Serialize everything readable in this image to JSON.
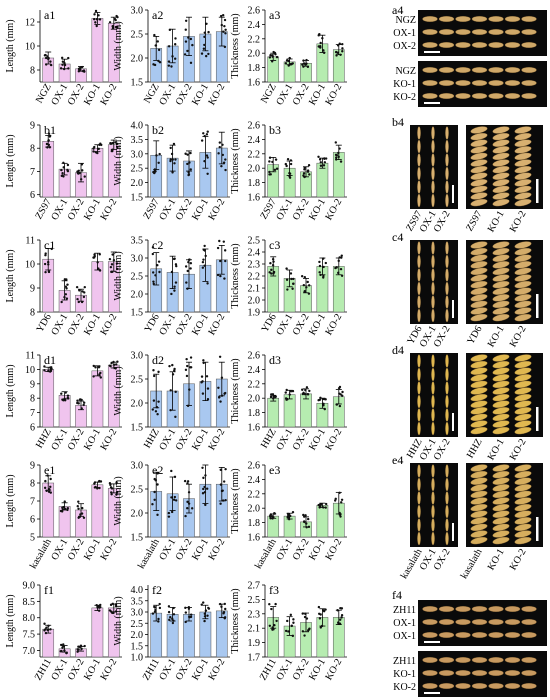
{
  "chart_data": [
    {
      "panel": "a1",
      "type": "bar",
      "ylabel": "Length (mm)",
      "categories": [
        "NGZ",
        "OX-1",
        "OX-2",
        "KO-1",
        "KO-2"
      ],
      "values": [
        9.0,
        8.5,
        8.1,
        12.3,
        11.9
      ],
      "errors": [
        0.5,
        0.4,
        0.2,
        0.5,
        0.5
      ],
      "color": "#f0c4ee",
      "ylim": [
        7,
        13
      ],
      "yticks": [
        8,
        10,
        12
      ]
    },
    {
      "panel": "a2",
      "type": "bar",
      "ylabel": "Width (mm)",
      "categories": [
        "NGZ",
        "OX-1",
        "OX-2",
        "KO-1",
        "KO-2"
      ],
      "values": [
        2.2,
        2.25,
        2.45,
        2.5,
        2.55
      ],
      "errors": [
        0.25,
        0.35,
        0.4,
        0.35,
        0.3
      ],
      "color": "#a9c8f0",
      "ylim": [
        1.5,
        3.0
      ],
      "yticks": [
        1.5,
        2.0,
        2.5,
        3.0
      ]
    },
    {
      "panel": "a3",
      "type": "bar",
      "ylabel": "Thickness (mm)",
      "categories": [
        "NGZ",
        "OX-1",
        "OX-2",
        "KO-1",
        "KO-2"
      ],
      "values": [
        1.95,
        1.88,
        1.86,
        2.13,
        2.05
      ],
      "errors": [
        0.05,
        0.04,
        0.04,
        0.12,
        0.07
      ],
      "color": "#b6ecb0",
      "ylim": [
        1.6,
        2.6
      ],
      "yticks": [
        1.6,
        1.8,
        2.0,
        2.2,
        2.4,
        2.6
      ]
    },
    {
      "panel": "b1",
      "type": "bar",
      "ylabel": "Length (mm)",
      "categories": [
        "ZS97",
        "OX-1",
        "OX-2",
        "KO-1",
        "KO-2"
      ],
      "values": [
        8.3,
        7.1,
        6.95,
        8.0,
        8.15
      ],
      "errors": [
        0.25,
        0.25,
        0.4,
        0.15,
        0.2
      ],
      "color": "#f0c4ee",
      "ylim": [
        5.9,
        9.0
      ],
      "yticks": [
        6,
        7,
        8,
        9
      ]
    },
    {
      "panel": "b2",
      "type": "bar",
      "ylabel": "Width (mm)",
      "categories": [
        "ZS97",
        "OX-1",
        "OX-2",
        "KO-1",
        "KO-2"
      ],
      "values": [
        2.95,
        2.85,
        2.75,
        3.05,
        3.2
      ],
      "errors": [
        0.5,
        0.45,
        0.35,
        0.55,
        0.55
      ],
      "color": "#a9c8f0",
      "ylim": [
        1.5,
        4.0
      ],
      "yticks": [
        1.5,
        2.0,
        2.5,
        3.0,
        3.5,
        4.0
      ]
    },
    {
      "panel": "b3",
      "type": "bar",
      "ylabel": "Thickness (mm)",
      "categories": [
        "ZS97",
        "OX-1",
        "OX-2",
        "KO-1",
        "KO-2"
      ],
      "values": [
        2.05,
        2.0,
        1.95,
        2.07,
        2.22
      ],
      "errors": [
        0.1,
        0.1,
        0.07,
        0.07,
        0.1
      ],
      "color": "#b6ecb0",
      "ylim": [
        1.6,
        2.6
      ],
      "yticks": [
        1.6,
        1.8,
        2.0,
        2.2,
        2.4,
        2.6
      ]
    },
    {
      "panel": "c1",
      "type": "bar",
      "ylabel": "Length (mm)",
      "categories": [
        "YD6",
        "OX-1",
        "OX-2",
        "KO-1",
        "KO-2"
      ],
      "values": [
        10.2,
        8.9,
        8.7,
        10.1,
        10.1
      ],
      "errors": [
        0.45,
        0.4,
        0.25,
        0.35,
        0.4
      ],
      "color": "#f0c4ee",
      "ylim": [
        8,
        11
      ],
      "yticks": [
        8,
        9,
        10,
        11
      ]
    },
    {
      "panel": "c2",
      "type": "bar",
      "ylabel": "Width (mm)",
      "categories": [
        "YD6",
        "OX-1",
        "OX-2",
        "KO-1",
        "KO-2"
      ],
      "values": [
        2.7,
        2.6,
        2.55,
        2.8,
        2.95
      ],
      "errors": [
        0.45,
        0.45,
        0.4,
        0.45,
        0.4
      ],
      "color": "#a9c8f0",
      "ylim": [
        1.5,
        3.5
      ],
      "yticks": [
        1.5,
        2.0,
        2.5,
        3.0,
        3.5
      ]
    },
    {
      "panel": "c3",
      "type": "bar",
      "ylabel": "Thickness (mm)",
      "categories": [
        "YD6",
        "OX-1",
        "OX-2",
        "KO-1",
        "KO-2"
      ],
      "values": [
        2.28,
        2.18,
        2.12,
        2.28,
        2.28
      ],
      "errors": [
        0.08,
        0.07,
        0.06,
        0.07,
        0.07
      ],
      "color": "#b6ecb0",
      "ylim": [
        1.9,
        2.5
      ],
      "yticks": [
        1.9,
        2.0,
        2.1,
        2.2,
        2.3,
        2.4,
        2.5
      ]
    },
    {
      "panel": "d1",
      "type": "bar",
      "ylabel": "Length (mm)",
      "categories": [
        "HHZ",
        "OX-1",
        "OX-2",
        "KO-1",
        "KO-2"
      ],
      "values": [
        10.0,
        8.2,
        7.5,
        9.9,
        10.3
      ],
      "errors": [
        0.15,
        0.25,
        0.3,
        0.35,
        0.2
      ],
      "color": "#f0c4ee",
      "ylim": [
        6,
        11
      ],
      "yticks": [
        6,
        7,
        8,
        9,
        10,
        11
      ]
    },
    {
      "panel": "d2",
      "type": "bar",
      "ylabel": "Width (mm)",
      "categories": [
        "HHZ",
        "OX-1",
        "OX-2",
        "KO-1",
        "KO-2"
      ],
      "values": [
        2.25,
        2.25,
        2.4,
        2.45,
        2.5
      ],
      "errors": [
        0.35,
        0.4,
        0.45,
        0.4,
        0.35
      ],
      "color": "#a9c8f0",
      "ylim": [
        1.5,
        3.0
      ],
      "yticks": [
        1.5,
        2.0,
        2.5,
        3.0
      ]
    },
    {
      "panel": "d3",
      "type": "bar",
      "ylabel": "Thickness (mm)",
      "categories": [
        "HHZ",
        "OX-1",
        "OX-2",
        "KO-1",
        "KO-2"
      ],
      "values": [
        2.0,
        2.05,
        2.06,
        1.93,
        2.02
      ],
      "errors": [
        0.04,
        0.06,
        0.07,
        0.07,
        0.1
      ],
      "color": "#b6ecb0",
      "ylim": [
        1.6,
        2.6
      ],
      "yticks": [
        1.6,
        1.8,
        2.0,
        2.2,
        2.4,
        2.6
      ]
    },
    {
      "panel": "e1",
      "type": "bar",
      "ylabel": "Length (mm)",
      "categories": [
        "kasalath",
        "OX-1",
        "OX-2",
        "KO-1",
        "KO-2"
      ],
      "values": [
        8.0,
        6.7,
        6.5,
        7.9,
        7.7
      ],
      "errors": [
        0.4,
        0.2,
        0.35,
        0.15,
        0.25
      ],
      "color": "#f0c4ee",
      "ylim": [
        5,
        9
      ],
      "yticks": [
        5,
        6,
        7,
        8,
        9
      ]
    },
    {
      "panel": "e2",
      "type": "bar",
      "ylabel": "Width (mm)",
      "categories": [
        "kasalath",
        "OX-1",
        "OX-2",
        "KO-1",
        "KO-2"
      ],
      "values": [
        2.45,
        2.4,
        2.3,
        2.6,
        2.6
      ],
      "errors": [
        0.4,
        0.35,
        0.3,
        0.4,
        0.35
      ],
      "color": "#a9c8f0",
      "ylim": [
        1.5,
        3.0
      ],
      "yticks": [
        1.5,
        2.0,
        2.5,
        3.0
      ]
    },
    {
      "panel": "e3",
      "type": "bar",
      "ylabel": "Thickness (mm)",
      "categories": [
        "kasalath",
        "OX-1",
        "OX-2",
        "KO-1",
        "KO-2"
      ],
      "values": [
        1.89,
        1.89,
        1.81,
        2.04,
        2.07
      ],
      "errors": [
        0.03,
        0.04,
        0.07,
        0.03,
        0.15
      ],
      "color": "#b6ecb0",
      "ylim": [
        1.6,
        2.6
      ],
      "yticks": [
        1.6,
        1.8,
        2.0,
        2.2,
        2.4,
        2.6
      ]
    },
    {
      "panel": "f1",
      "type": "bar",
      "ylabel": "Length (mm)",
      "categories": [
        "ZH11",
        "OX-1",
        "OX-2",
        "KO-1",
        "KO-2"
      ],
      "values": [
        7.65,
        7.05,
        7.05,
        8.3,
        8.3
      ],
      "errors": [
        0.12,
        0.1,
        0.07,
        0.08,
        0.12
      ],
      "color": "#f0c4ee",
      "ylim": [
        6.8,
        9.0
      ],
      "yticks": [
        7.0,
        7.5,
        8.0,
        8.5,
        9.0
      ]
    },
    {
      "panel": "f2",
      "type": "bar",
      "ylabel": "Width (mm)",
      "categories": [
        "ZH11",
        "OX-1",
        "OX-2",
        "KO-1",
        "KO-2"
      ],
      "values": [
        2.95,
        2.9,
        2.9,
        3.0,
        3.05
      ],
      "errors": [
        0.35,
        0.3,
        0.3,
        0.3,
        0.3
      ],
      "color": "#a9c8f0",
      "ylim": [
        1.0,
        4.2
      ],
      "yticks": [
        1.0,
        1.5,
        2.0,
        2.5,
        3.0,
        3.5,
        4.0
      ]
    },
    {
      "panel": "f3",
      "type": "bar",
      "ylabel": "Thickness (mm)",
      "categories": [
        "ZH11",
        "OX-1",
        "OX-2",
        "KO-1",
        "KO-2"
      ],
      "values": [
        2.25,
        2.13,
        2.18,
        2.25,
        2.25
      ],
      "errors": [
        0.15,
        0.13,
        0.13,
        0.12,
        0.1
      ],
      "color": "#b6ecb0",
      "ylim": [
        1.7,
        2.7
      ],
      "yticks": [
        1.7,
        1.9,
        2.1,
        2.3,
        2.5,
        2.7
      ]
    }
  ],
  "photos": [
    {
      "panel": "a4",
      "blocks": [
        {
          "type": "rows",
          "rows": [
            "NGZ",
            "OX-1",
            "OX-2"
          ],
          "grain": "#cfa868"
        },
        {
          "type": "rows",
          "rows": [
            "NGZ",
            "KO-1",
            "KO-2"
          ],
          "grain": "#cfa868"
        }
      ]
    },
    {
      "panel": "b4",
      "blocks": [
        {
          "type": "cols",
          "cols": [
            "ZS97",
            "OX-1",
            "OX-2"
          ],
          "grain": "#d8b070"
        },
        {
          "type": "cols",
          "cols": [
            "ZS97",
            "KO-1",
            "KO-2"
          ],
          "grain": "#d8b070"
        }
      ]
    },
    {
      "panel": "c4",
      "blocks": [
        {
          "type": "cols",
          "cols": [
            "YD6",
            "OX-1",
            "OX-2"
          ],
          "grain": "#d4ac6a"
        },
        {
          "type": "cols",
          "cols": [
            "YD6",
            "KO-1",
            "KO-2"
          ],
          "grain": "#d4ac6a"
        }
      ]
    },
    {
      "panel": "d4",
      "blocks": [
        {
          "type": "cols",
          "cols": [
            "HHZ",
            "OX-1",
            "OX-2"
          ],
          "grain": "#e0b850"
        },
        {
          "type": "cols",
          "cols": [
            "HHZ",
            "KO-1",
            "KO-2"
          ],
          "grain": "#e0b850"
        }
      ]
    },
    {
      "panel": "e4",
      "blocks": [
        {
          "type": "cols",
          "cols": [
            "kasalath",
            "OX-1",
            "OX-2"
          ],
          "grain": "#d6ae5e"
        },
        {
          "type": "cols",
          "cols": [
            "kasalath",
            "KO-1",
            "KO-2"
          ],
          "grain": "#d6ae5e"
        }
      ]
    },
    {
      "panel": "f4",
      "blocks": [
        {
          "type": "rows",
          "rows": [
            "ZH11",
            "OX-1",
            "OX-1"
          ],
          "grain": "#c89a60"
        },
        {
          "type": "rows",
          "rows": [
            "ZH11",
            "KO-1",
            "KO-2"
          ],
          "grain": "#c89a60"
        }
      ]
    }
  ]
}
